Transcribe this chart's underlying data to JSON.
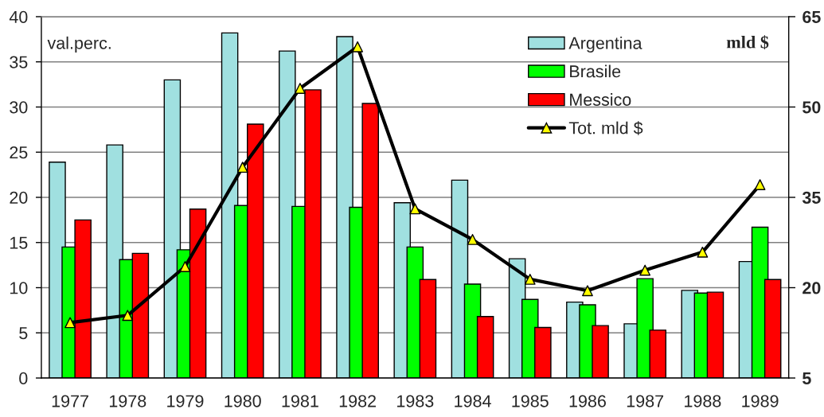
{
  "chart_data": {
    "type": "bar",
    "categories": [
      "1977",
      "1978",
      "1979",
      "1980",
      "1981",
      "1982",
      "1983",
      "1984",
      "1985",
      "1986",
      "1987",
      "1988",
      "1989"
    ],
    "series": [
      {
        "name": "Argentina",
        "color": "#a0e0e0",
        "values": [
          23.9,
          25.8,
          33.0,
          38.2,
          36.2,
          37.8,
          19.4,
          21.9,
          13.2,
          8.4,
          6.0,
          9.7,
          12.9
        ]
      },
      {
        "name": "Brasile",
        "color": "#00ff00",
        "values": [
          14.5,
          13.1,
          14.2,
          19.1,
          19.0,
          18.9,
          14.5,
          10.4,
          8.7,
          8.1,
          11.0,
          9.4,
          16.7
        ]
      },
      {
        "name": "Messico",
        "color": "#ff0000",
        "values": [
          17.5,
          13.8,
          18.7,
          28.1,
          31.9,
          30.4,
          10.9,
          6.8,
          5.6,
          5.8,
          5.3,
          9.5,
          10.9
        ]
      },
      {
        "name": "Tot. mld $",
        "type": "line",
        "axis": "y2",
        "color": "#000000",
        "colors": [
          "#ffff00",
          "#ffff00",
          "#ffff00",
          "#ffff00",
          "#ffff00",
          "#ffff00",
          "#ffff00",
          "#ffff00",
          "#ffff00",
          "#ffff00",
          "#ffff00",
          "#ffff00",
          "#ffff00"
        ],
        "marker": "triangle",
        "values": [
          14.2,
          15.4,
          23.5,
          40.0,
          53.1,
          60.0,
          33.1,
          28.0,
          21.4,
          19.5,
          22.9,
          25.9,
          37.1
        ]
      }
    ],
    "ylim": [
      0,
      40
    ],
    "yticks": [
      0,
      5,
      10,
      15,
      20,
      25,
      30,
      35,
      40
    ],
    "y2lim": [
      5,
      65
    ],
    "y2ticks": [
      5,
      20,
      35,
      50,
      65
    ],
    "ylabel": "val.perc.",
    "y2label": "mld $",
    "grid": "y",
    "legend": "top right"
  }
}
